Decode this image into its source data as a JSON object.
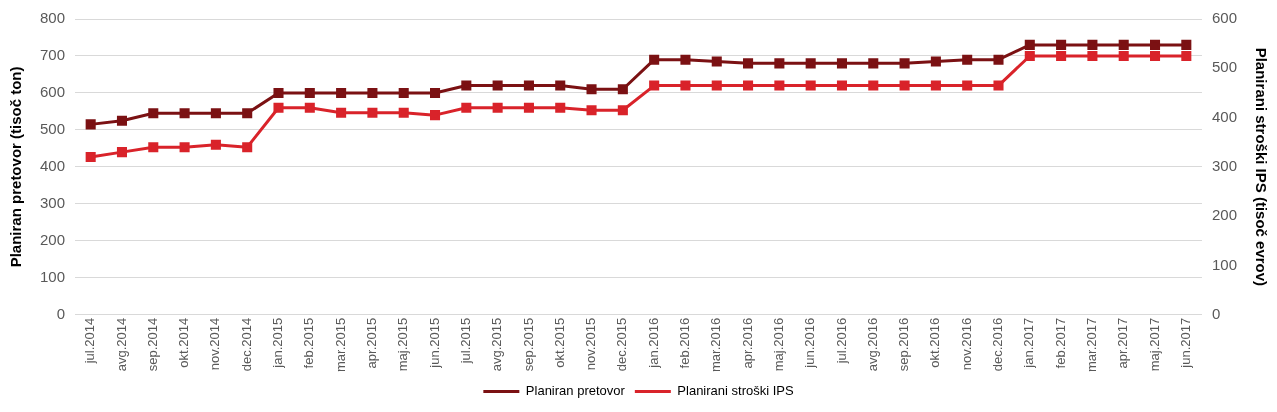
{
  "chart_data": {
    "type": "line",
    "categories": [
      "jul.2014",
      "avg.2014",
      "sep.2014",
      "okt.2014",
      "nov.2014",
      "dec.2014",
      "jan.2015",
      "feb.2015",
      "mar.2015",
      "apr.2015",
      "maj.2015",
      "jun.2015",
      "jul.2015",
      "avg.2015",
      "sep.2015",
      "okt.2015",
      "nov.2015",
      "dec.2015",
      "jan.2016",
      "feb.2016",
      "mar.2016",
      "apr.2016",
      "maj.2016",
      "jun.2016",
      "jul.2016",
      "avg.2016",
      "sep.2016",
      "okt.2016",
      "nov.2016",
      "dec.2016",
      "jan.2017",
      "feb.2017",
      "mar.2017",
      "apr.2017",
      "maj.2017",
      "jun.2017"
    ],
    "series": [
      {
        "name": "Planiran pretovor",
        "color": "#7b1113",
        "values": [
          515,
          525,
          545,
          545,
          545,
          545,
          600,
          600,
          600,
          600,
          600,
          600,
          620,
          620,
          620,
          620,
          610,
          610,
          690,
          690,
          685,
          680,
          680,
          680,
          680,
          680,
          680,
          685,
          690,
          690,
          730,
          730,
          730,
          730,
          730,
          730
        ]
      },
      {
        "name": "Planirani stroški IPS",
        "color": "#d9232a",
        "axis": "y2",
        "values": [
          320,
          330,
          340,
          340,
          345,
          340,
          420,
          420,
          410,
          410,
          410,
          405,
          420,
          420,
          420,
          420,
          415,
          415,
          465,
          465,
          465,
          465,
          465,
          465,
          465,
          465,
          465,
          465,
          465,
          465,
          525,
          525,
          525,
          525,
          525,
          525
        ]
      }
    ],
    "ylabel": "Planiran pretovor (tisoč ton)",
    "y2label": "Planirani stroški IPS (tisoč evrov)",
    "ylim": [
      0,
      800
    ],
    "yticks": [
      0,
      100,
      200,
      300,
      400,
      500,
      600,
      700,
      800
    ],
    "y2lim": [
      0,
      600
    ],
    "y2ticks": [
      0,
      100,
      200,
      300,
      400,
      500,
      600
    ],
    "grid": "y",
    "legend": "bottom",
    "marker": "square",
    "line_style": "solid"
  }
}
